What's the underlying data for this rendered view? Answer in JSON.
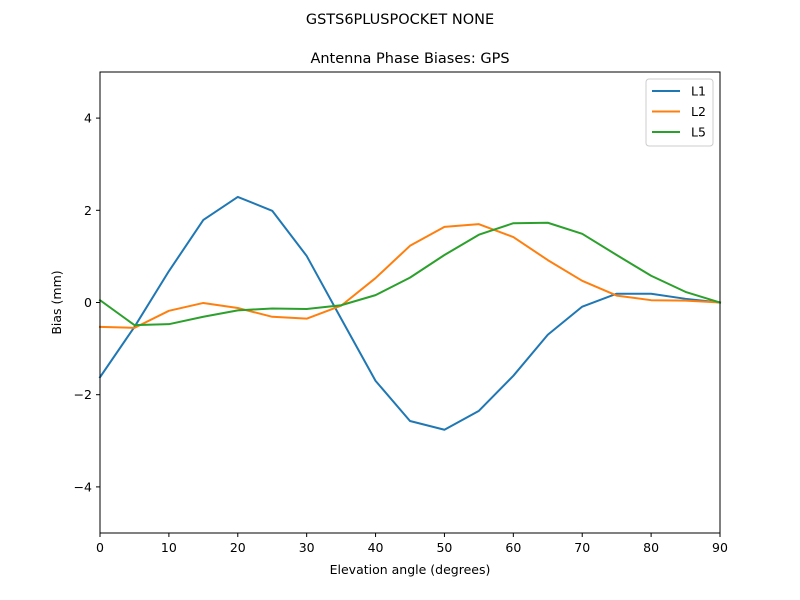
{
  "figure": {
    "suptitle": "GSTS6PLUSPOCKET NONE"
  },
  "chart_data": {
    "type": "line",
    "title": "Antenna Phase Biases: GPS",
    "suptitle": "GSTS6PLUSPOCKET NONE",
    "xlabel": "Elevation angle (degrees)",
    "ylabel": "Bias (mm)",
    "xlim": [
      0,
      90
    ],
    "ylim": [
      -5,
      5
    ],
    "xticks": [
      0,
      10,
      20,
      30,
      40,
      50,
      60,
      70,
      80,
      90
    ],
    "yticks": [
      -4,
      -2,
      0,
      2,
      4
    ],
    "ytick_labels": [
      "−4",
      "−2",
      "0",
      "2",
      "4"
    ],
    "grid": false,
    "legend_position": "upper right",
    "x": [
      0,
      5,
      10,
      15,
      20,
      25,
      30,
      35,
      40,
      45,
      50,
      55,
      60,
      65,
      70,
      75,
      80,
      85,
      90
    ],
    "series": [
      {
        "name": "L1",
        "color": "#1f77b4",
        "values": [
          -1.62,
          -0.53,
          0.68,
          1.79,
          2.29,
          1.99,
          1.01,
          -0.35,
          -1.7,
          -2.57,
          -2.76,
          -2.35,
          -1.59,
          -0.7,
          -0.09,
          0.19,
          0.19,
          0.08,
          0.0
        ]
      },
      {
        "name": "L2",
        "color": "#ff7f0e",
        "values": [
          -0.53,
          -0.55,
          -0.18,
          -0.01,
          -0.12,
          -0.31,
          -0.35,
          -0.07,
          0.53,
          1.23,
          1.64,
          1.7,
          1.42,
          0.92,
          0.47,
          0.15,
          0.05,
          0.04,
          0.0
        ]
      },
      {
        "name": "L5",
        "color": "#2ca02c",
        "values": [
          0.05,
          -0.49,
          -0.47,
          -0.31,
          -0.17,
          -0.13,
          -0.14,
          -0.06,
          0.16,
          0.54,
          1.03,
          1.47,
          1.72,
          1.73,
          1.49,
          1.03,
          0.58,
          0.23,
          0.0
        ]
      }
    ]
  }
}
